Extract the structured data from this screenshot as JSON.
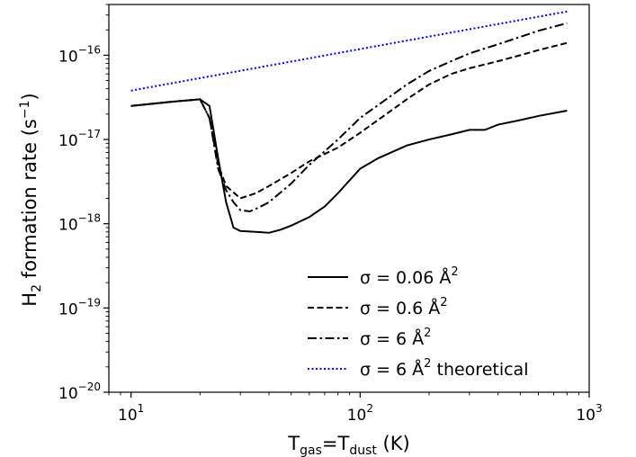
{
  "chart_data": {
    "type": "line",
    "xscale": "log",
    "yscale": "log",
    "xlim": [
      8,
      1000
    ],
    "ylim": [
      1e-20,
      4e-16
    ],
    "xlabel": {
      "main": "T",
      "sub1": "gas",
      "mid": "=T",
      "sub2": "dust",
      "tail": " (K)"
    },
    "ylabel": {
      "main": "H",
      "sub": "2",
      "rest": " formation rate (s",
      "sup": "−1",
      "close": ")"
    },
    "xticks": [
      {
        "value": 10,
        "base": "10",
        "exp": "1"
      },
      {
        "value": 100,
        "base": "10",
        "exp": "2"
      },
      {
        "value": 1000,
        "base": "10",
        "exp": "3"
      }
    ],
    "yticks": [
      {
        "value": 1e-20,
        "base": "10",
        "exp": "−20"
      },
      {
        "value": 1e-19,
        "base": "10",
        "exp": "−19"
      },
      {
        "value": 1e-18,
        "base": "10",
        "exp": "−18"
      },
      {
        "value": 1e-17,
        "base": "10",
        "exp": "−17"
      },
      {
        "value": 1e-16,
        "base": "10",
        "exp": "−16"
      }
    ],
    "legend_position": "lower right",
    "series": [
      {
        "name": "σ = 0.06 Å2",
        "label": {
          "pre": "σ = 0.06 Å",
          "sup": "2",
          "post": ""
        },
        "style": "solid",
        "color": "#000000",
        "points": [
          [
            10,
            2.5e-17
          ],
          [
            15,
            2.8e-17
          ],
          [
            20,
            3e-17
          ],
          [
            22,
            2.5e-17
          ],
          [
            24,
            6e-18
          ],
          [
            26,
            1.8e-18
          ],
          [
            28,
            9e-19
          ],
          [
            30,
            8.2e-19
          ],
          [
            35,
            8e-19
          ],
          [
            40,
            7.8e-19
          ],
          [
            45,
            8.5e-19
          ],
          [
            50,
            9.5e-19
          ],
          [
            60,
            1.2e-18
          ],
          [
            70,
            1.6e-18
          ],
          [
            80,
            2.3e-18
          ],
          [
            100,
            4.5e-18
          ],
          [
            120,
            6e-18
          ],
          [
            160,
            8.5e-18
          ],
          [
            200,
            1e-17
          ],
          [
            250,
            1.15e-17
          ],
          [
            300,
            1.3e-17
          ],
          [
            350,
            1.3e-17
          ],
          [
            400,
            1.5e-17
          ],
          [
            500,
            1.7e-17
          ],
          [
            600,
            1.9e-17
          ],
          [
            800,
            2.2e-17
          ]
        ]
      },
      {
        "name": "σ = 0.6 Å2",
        "label": {
          "pre": "σ = 0.6 Å",
          "sup": "2",
          "post": ""
        },
        "style": "dashed",
        "color": "#000000",
        "points": [
          [
            10,
            2.5e-17
          ],
          [
            15,
            2.8e-17
          ],
          [
            20,
            3e-17
          ],
          [
            22,
            1.8e-17
          ],
          [
            24,
            5e-18
          ],
          [
            26,
            2.8e-18
          ],
          [
            30,
            2e-18
          ],
          [
            35,
            2.3e-18
          ],
          [
            40,
            2.8e-18
          ],
          [
            50,
            4e-18
          ],
          [
            60,
            5.5e-18
          ],
          [
            80,
            8e-18
          ],
          [
            100,
            1.2e-17
          ],
          [
            130,
            2e-17
          ],
          [
            160,
            3e-17
          ],
          [
            200,
            4.5e-17
          ],
          [
            250,
            6e-17
          ],
          [
            300,
            7e-17
          ],
          [
            400,
            8.5e-17
          ],
          [
            500,
            1e-16
          ],
          [
            600,
            1.15e-16
          ],
          [
            800,
            1.4e-16
          ]
        ]
      },
      {
        "name": "σ = 6 Å2",
        "label": {
          "pre": "σ = 6 Å",
          "sup": "2",
          "post": ""
        },
        "style": "dashdot",
        "color": "#000000",
        "points": [
          [
            10,
            2.5e-17
          ],
          [
            15,
            2.8e-17
          ],
          [
            20,
            3e-17
          ],
          [
            22,
            1.8e-17
          ],
          [
            24,
            4.5e-18
          ],
          [
            26,
            2.5e-18
          ],
          [
            28,
            1.8e-18
          ],
          [
            30,
            1.45e-18
          ],
          [
            33,
            1.4e-18
          ],
          [
            36,
            1.55e-18
          ],
          [
            40,
            1.8e-18
          ],
          [
            50,
            3e-18
          ],
          [
            60,
            5e-18
          ],
          [
            80,
            1e-17
          ],
          [
            100,
            1.8e-17
          ],
          [
            130,
            3e-17
          ],
          [
            160,
            4.5e-17
          ],
          [
            200,
            6.5e-17
          ],
          [
            250,
            8.5e-17
          ],
          [
            300,
            1.05e-16
          ],
          [
            400,
            1.35e-16
          ],
          [
            500,
            1.65e-16
          ],
          [
            600,
            1.95e-16
          ],
          [
            800,
            2.4e-16
          ]
        ]
      },
      {
        "name": "σ = 6 Å2 theoretical",
        "label": {
          "pre": "σ = 6 Å",
          "sup": "2",
          "post": " theoretical"
        },
        "style": "dotted",
        "color": "#0000ff",
        "points": [
          [
            10,
            3.8e-17
          ],
          [
            800,
            3.3e-16
          ]
        ]
      }
    ]
  }
}
